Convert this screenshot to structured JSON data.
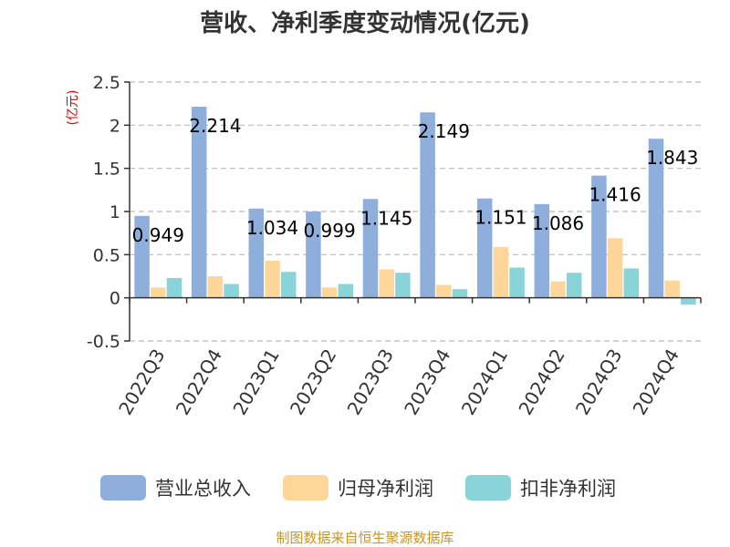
{
  "chart_data": {
    "type": "bar",
    "title": "营收、净利季度变动情况(亿元)",
    "ylabel": "(亿元)",
    "ylim": [
      -0.5,
      2.5
    ],
    "yticks": [
      "2.5",
      "2",
      "1.5",
      "1",
      "0.5",
      "0",
      "-0.5"
    ],
    "ytick_values": [
      2.5,
      2,
      1.5,
      1,
      0.5,
      0,
      -0.5
    ],
    "grid": true,
    "legend_position": "bottom",
    "categories": [
      "2022Q3",
      "2022Q4",
      "2023Q1",
      "2023Q2",
      "2023Q3",
      "2023Q4",
      "2024Q1",
      "2024Q2",
      "2024Q3",
      "2024Q4"
    ],
    "series": [
      {
        "name": "营业总收入",
        "color": "#8eaedb",
        "values": [
          0.949,
          2.214,
          1.034,
          0.999,
          1.145,
          2.149,
          1.151,
          1.086,
          1.416,
          1.843
        ],
        "labels": [
          "0.949",
          "2.214",
          "1.034",
          "0.999",
          "1.145",
          "2.149",
          "1.151",
          "1.086",
          "1.416",
          "1.843"
        ]
      },
      {
        "name": "归母净利润",
        "color": "#ffd699",
        "values": [
          0.12,
          0.25,
          0.43,
          0.12,
          0.33,
          0.15,
          0.59,
          0.19,
          0.69,
          0.2
        ]
      },
      {
        "name": "扣非净利润",
        "color": "#88d4d8",
        "values": [
          0.23,
          0.16,
          0.3,
          0.16,
          0.29,
          0.1,
          0.35,
          0.29,
          0.34,
          -0.08
        ]
      }
    ]
  },
  "footer": {
    "source": "制图数据来自恒生聚源数据库"
  }
}
